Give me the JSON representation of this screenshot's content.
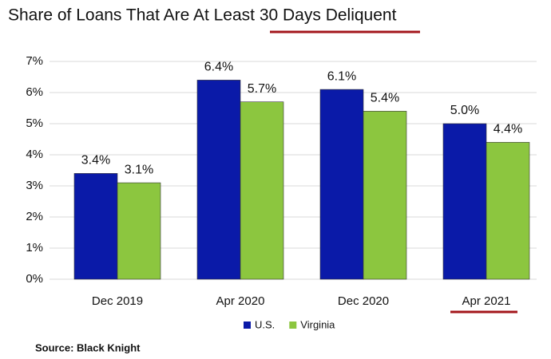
{
  "chart_data": {
    "type": "bar",
    "title": "Share of Loans That Are At Least 30 Days Deliquent",
    "source": "Source: Black Knight",
    "categories": [
      "Dec 2019",
      "Apr 2020",
      "Dec 2020",
      "Apr 2021"
    ],
    "series": [
      {
        "name": "U.S.",
        "color": "#0a1aa8",
        "values": [
          3.4,
          6.4,
          6.1,
          5.0
        ],
        "value_labels": [
          "3.4%",
          "6.4%",
          "6.1%",
          "5.0%"
        ]
      },
      {
        "name": "Virginia",
        "color": "#8cc63f",
        "values": [
          3.1,
          5.7,
          5.4,
          4.4
        ],
        "value_labels": [
          "3.1%",
          "5.7%",
          "5.4%",
          "4.4%"
        ]
      }
    ],
    "ylim": [
      0,
      7
    ],
    "yticks": [
      {
        "value": 0,
        "label": "0%"
      },
      {
        "value": 1,
        "label": "1%"
      },
      {
        "value": 2,
        "label": "2%"
      },
      {
        "value": 3,
        "label": "3%"
      },
      {
        "value": 4,
        "label": "4%"
      },
      {
        "value": 5,
        "label": "5%"
      },
      {
        "value": 6,
        "label": "6%"
      },
      {
        "value": 7,
        "label": "7%"
      }
    ],
    "grid": true,
    "legend": "bottom"
  }
}
